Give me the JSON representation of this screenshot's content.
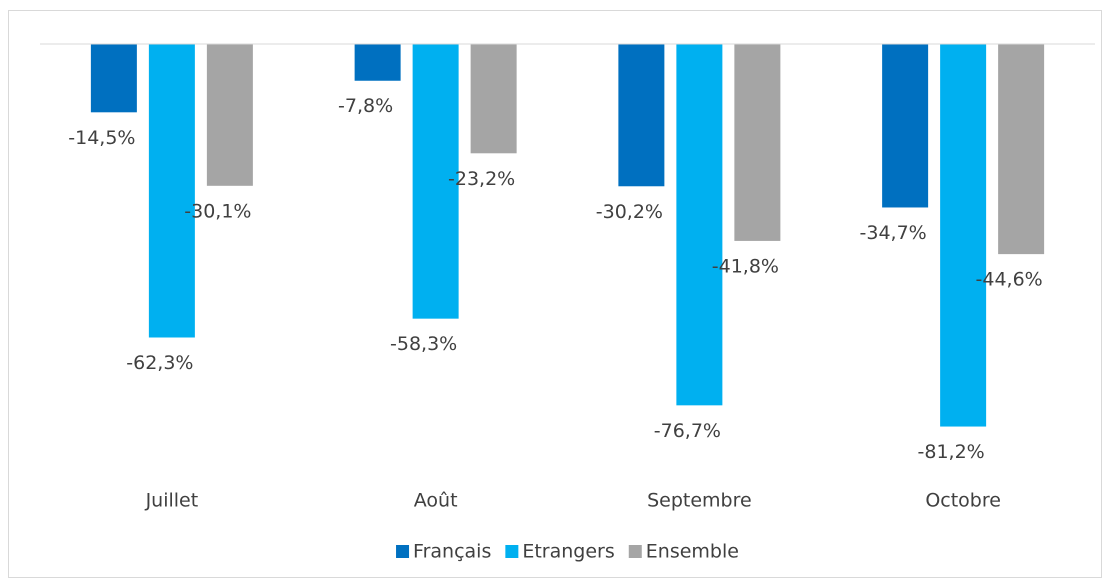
{
  "chart_data": {
    "type": "bar",
    "categories": [
      "Juillet",
      "Août",
      "Septembre",
      "Octobre"
    ],
    "series": [
      {
        "name": "Français",
        "color": "#0070c0",
        "values": [
          -14.5,
          -7.8,
          -30.2,
          -34.7
        ],
        "value_labels": [
          "-14,5%",
          "-7,8%",
          "-30,2%",
          "-34,7%"
        ]
      },
      {
        "name": "Etrangers",
        "color": "#00b0f0",
        "values": [
          -62.3,
          -58.3,
          -76.7,
          -81.2
        ],
        "value_labels": [
          "-62,3%",
          "-58,3%",
          "-76,7%",
          "-81,2%"
        ]
      },
      {
        "name": "Ensemble",
        "color": "#a5a5a5",
        "values": [
          -30.1,
          -23.2,
          -41.8,
          -44.6
        ],
        "value_labels": [
          "-30,1%",
          "-23,2%",
          "-41,8%",
          "-44,6%"
        ]
      }
    ],
    "ylim": [
      -90,
      0
    ],
    "legend": "bottom"
  }
}
